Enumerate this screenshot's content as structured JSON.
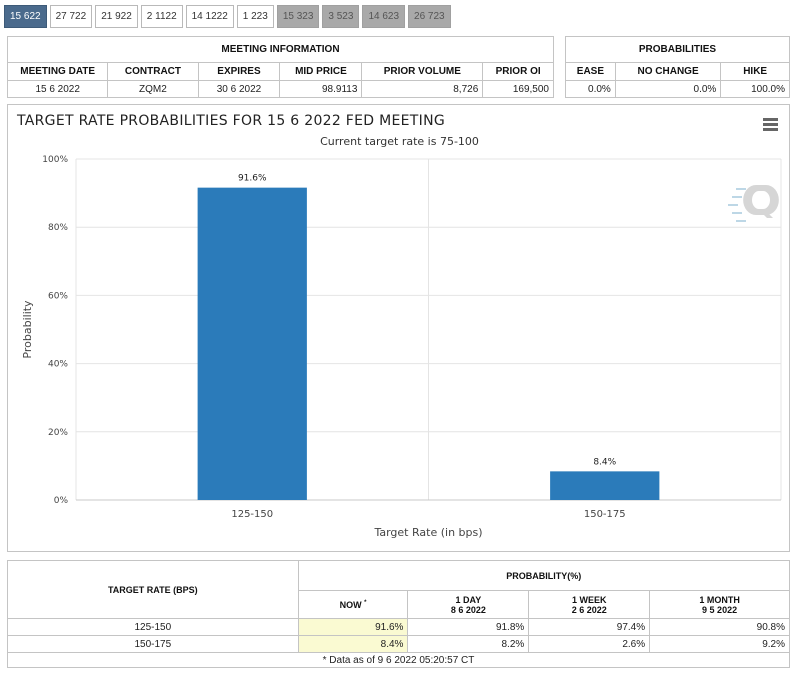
{
  "tabs": [
    {
      "label": "15 622",
      "state": "active"
    },
    {
      "label": "27 722",
      "state": "normal"
    },
    {
      "label": "21 922",
      "state": "normal"
    },
    {
      "label": "2 1122",
      "state": "normal"
    },
    {
      "label": "14 1222",
      "state": "normal"
    },
    {
      "label": "1 223",
      "state": "normal"
    },
    {
      "label": "15 323",
      "state": "inactive"
    },
    {
      "label": "3 523",
      "state": "inactive"
    },
    {
      "label": "14 623",
      "state": "inactive"
    },
    {
      "label": "26 723",
      "state": "inactive"
    }
  ],
  "meeting_info": {
    "title": "MEETING INFORMATION",
    "headers": [
      "MEETING DATE",
      "CONTRACT",
      "EXPIRES",
      "MID PRICE",
      "PRIOR VOLUME",
      "PRIOR OI"
    ],
    "row": [
      "15 6 2022",
      "ZQM2",
      "30 6 2022",
      "98.9113",
      "8,726",
      "169,500"
    ]
  },
  "probabilities": {
    "title": "PROBABILITIES",
    "headers": [
      "EASE",
      "NO CHANGE",
      "HIKE"
    ],
    "row": [
      "0.0%",
      "0.0%",
      "100.0%"
    ]
  },
  "chart_data": {
    "type": "bar",
    "title": "TARGET RATE PROBABILITIES FOR 15 6 2022 FED MEETING",
    "subtitle": "Current target rate is 75-100",
    "xlabel": "Target Rate (in bps)",
    "ylabel": "Probability",
    "categories": [
      "125-150",
      "150-175"
    ],
    "values": [
      91.6,
      8.4
    ],
    "data_labels": [
      "91.6%",
      "8.4%"
    ],
    "yticks": [
      "0%",
      "20%",
      "40%",
      "60%",
      "80%",
      "100%"
    ],
    "ylim": [
      0,
      100
    ],
    "grid": true,
    "bar_color": "#2b7bba"
  },
  "history": {
    "header_rate": "TARGET RATE (BPS)",
    "header_prob": "PROBABILITY(%)",
    "col_now": "NOW",
    "col_now_marker": "*",
    "cols": [
      {
        "line1": "1 DAY",
        "line2": "8 6 2022"
      },
      {
        "line1": "1 WEEK",
        "line2": "2 6 2022"
      },
      {
        "line1": "1 MONTH",
        "line2": "9 5 2022"
      }
    ],
    "rows": [
      {
        "rate": "125-150",
        "now": "91.6%",
        "day": "91.8%",
        "week": "97.4%",
        "month": "90.8%"
      },
      {
        "rate": "150-175",
        "now": "8.4%",
        "day": "8.2%",
        "week": "2.6%",
        "month": "9.2%"
      }
    ],
    "footnote": "* Data as of 9 6 2022 05:20:57 CT"
  }
}
